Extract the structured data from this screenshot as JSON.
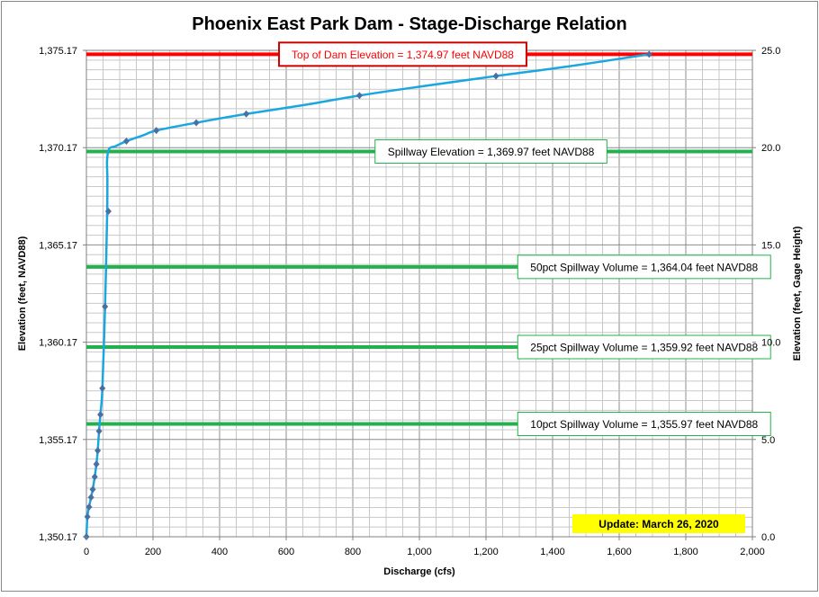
{
  "chart_data": {
    "type": "line",
    "title": "Phoenix East Park Dam - Stage-Discharge Relation",
    "xlabel": "Discharge  (cfs)",
    "ylabel_left": "Elevation  (feet, NAVD88)",
    "ylabel_right": "Elevation  (feet, Gage Height)",
    "xlim": [
      0,
      2000
    ],
    "ylim_left": [
      1350.17,
      1375.17
    ],
    "ylim_right": [
      0,
      25
    ],
    "x_ticks": [
      0,
      200,
      400,
      600,
      800,
      1000,
      1200,
      1400,
      1600,
      1800,
      2000
    ],
    "x_tick_labels": [
      "0",
      "200",
      "400",
      "600",
      "800",
      "1,000",
      "1,200",
      "1,400",
      "1,600",
      "1,800",
      "2,000"
    ],
    "y_left_ticks": [
      1350.17,
      1355.17,
      1360.17,
      1365.17,
      1370.17,
      1375.17
    ],
    "y_left_tick_labels": [
      "1,350.17",
      "1,355.17",
      "1,360.17",
      "1,365.17",
      "1,370.17",
      "1,375.17"
    ],
    "y_right_ticks": [
      0,
      5,
      10,
      15,
      20,
      25
    ],
    "y_right_tick_labels": [
      "0.0",
      "5.0",
      "10.0",
      "15.0",
      "20.0",
      "25.0"
    ],
    "grid": true,
    "series": [
      {
        "color": "#1aa7e0",
        "marker_color": "#4a6fa5",
        "curve": [
          [
            0,
            1350.17
          ],
          [
            3,
            1351.2
          ],
          [
            8,
            1351.7
          ],
          [
            14,
            1352.2
          ],
          [
            19,
            1352.6
          ],
          [
            25,
            1353.25
          ],
          [
            30,
            1353.9
          ],
          [
            34,
            1354.6
          ],
          [
            38,
            1355.6
          ],
          [
            42,
            1356.45
          ],
          [
            48,
            1357.8
          ],
          [
            56,
            1362.0
          ],
          [
            62,
            1366.5
          ],
          [
            63,
            1368.5
          ],
          [
            62,
            1369.5
          ],
          [
            68,
            1370.1
          ],
          [
            88,
            1370.25
          ],
          [
            120,
            1370.5
          ],
          [
            170,
            1370.8
          ],
          [
            210,
            1371.05
          ],
          [
            330,
            1371.45
          ],
          [
            480,
            1371.9
          ],
          [
            650,
            1372.35
          ],
          [
            820,
            1372.85
          ],
          [
            1020,
            1373.35
          ],
          [
            1230,
            1373.85
          ],
          [
            1450,
            1374.35
          ],
          [
            1690,
            1374.97
          ]
        ],
        "markers": [
          [
            0,
            1350.17
          ],
          [
            3,
            1351.2
          ],
          [
            8,
            1351.7
          ],
          [
            14,
            1352.2
          ],
          [
            19,
            1352.6
          ],
          [
            25,
            1353.25
          ],
          [
            30,
            1353.9
          ],
          [
            34,
            1354.6
          ],
          [
            38,
            1355.6
          ],
          [
            42,
            1356.45
          ],
          [
            48,
            1357.8
          ],
          [
            56,
            1362.0
          ],
          [
            66,
            1366.9
          ],
          [
            120,
            1370.5
          ],
          [
            210,
            1371.05
          ],
          [
            330,
            1371.45
          ],
          [
            480,
            1371.9
          ],
          [
            820,
            1372.85
          ],
          [
            1230,
            1373.85
          ],
          [
            1690,
            1374.97
          ]
        ]
      }
    ],
    "reference_lines": [
      {
        "y": 1374.97,
        "color": "#ff0000",
        "label": "Top of Dam Elevation = 1,374.97  feet NAVD88",
        "label_x": 950,
        "label_color": "#ff0000",
        "border_color": "#cc0000"
      },
      {
        "y": 1369.97,
        "color": "#22b14c",
        "label": "Spillway Elevation = 1,369.97  feet NAVD88",
        "label_x": 1215,
        "label_color": "#000000",
        "border_color": "#22b14c"
      },
      {
        "y": 1364.04,
        "color": "#22b14c",
        "label": "50pct Spillway Volume = 1,364.04  feet NAVD88",
        "label_x": 1675,
        "label_color": "#000000",
        "border_color": "#22b14c"
      },
      {
        "y": 1359.92,
        "color": "#22b14c",
        "label": "25pct Spillway Volume = 1,359.92  feet NAVD88",
        "label_x": 1675,
        "label_color": "#000000",
        "border_color": "#22b14c"
      },
      {
        "y": 1355.97,
        "color": "#22b14c",
        "label": "10pct Spillway Volume = 1,355.97  feet NAVD88",
        "label_x": 1675,
        "label_color": "#000000",
        "border_color": "#22b14c"
      }
    ],
    "annotations": [
      {
        "text": "Update: March 26, 2020",
        "background": "#ffff00",
        "placement": "bottom-right"
      }
    ]
  }
}
